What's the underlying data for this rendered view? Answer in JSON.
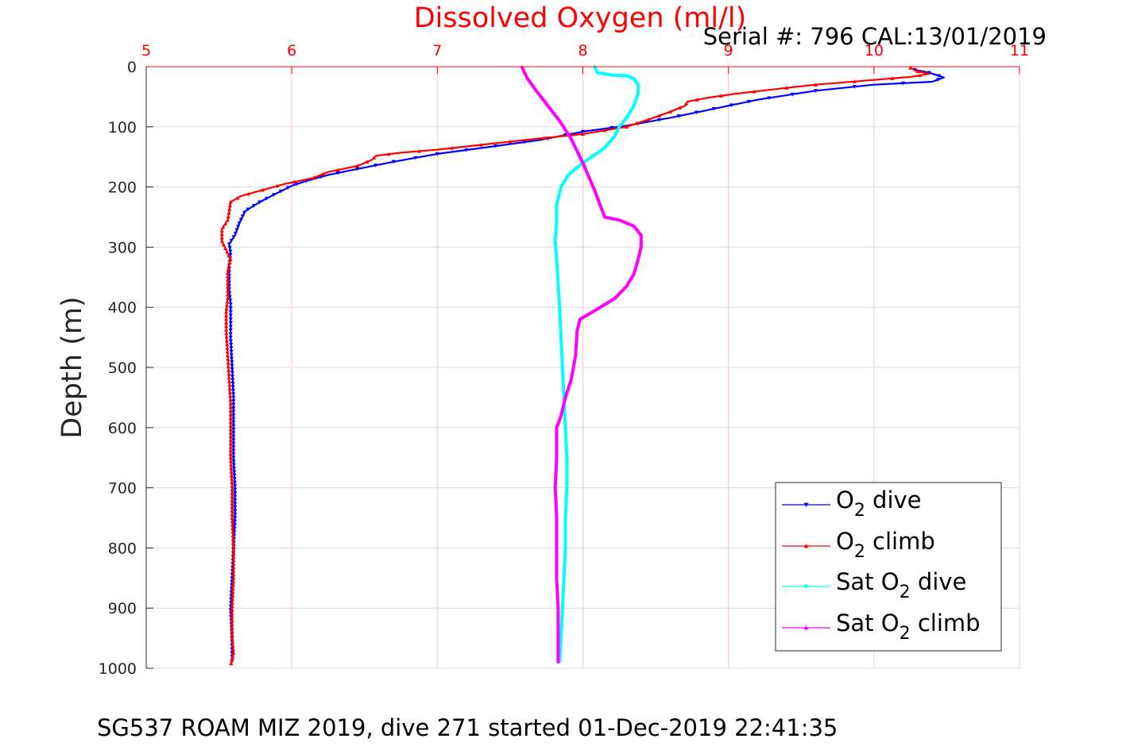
{
  "chart_data": {
    "type": "scatter",
    "title": "Dissolved Oxygen (ml/l)",
    "serial_text": "Serial #: 796  CAL:13/01/2019",
    "xlabel": "",
    "ylabel": "Depth (m)",
    "footer": "SG537 ROAM MIZ 2019, dive 271 started 01-Dec-2019 22:41:35",
    "xlim": [
      5,
      11
    ],
    "ylim": [
      0,
      1000
    ],
    "y_reversed": true,
    "x_axis_position": "top",
    "xticks": [
      "5",
      "6",
      "7",
      "8",
      "9",
      "10",
      "11"
    ],
    "yticks": [
      "0",
      "100",
      "200",
      "300",
      "400",
      "500",
      "600",
      "700",
      "800",
      "900",
      "1000"
    ],
    "grid": true,
    "legend_position": "bottom-right",
    "legend": [
      {
        "base": "O",
        "sub": "2",
        "suffix": " dive",
        "prefix": ""
      },
      {
        "base": "O",
        "sub": "2",
        "suffix": " climb",
        "prefix": ""
      },
      {
        "base": "O",
        "sub": "2",
        "suffix": " dive",
        "prefix": "Sat "
      },
      {
        "base": "O",
        "sub": "2",
        "suffix": " climb",
        "prefix": "Sat "
      }
    ],
    "series": [
      {
        "name": "O2 dive",
        "color": "#0000ff",
        "marker": "triangle-down",
        "points": [
          [
            10.28,
            5
          ],
          [
            10.38,
            10
          ],
          [
            10.48,
            18
          ],
          [
            10.4,
            25
          ],
          [
            10.0,
            30
          ],
          [
            9.6,
            40
          ],
          [
            9.2,
            55
          ],
          [
            8.9,
            70
          ],
          [
            8.6,
            85
          ],
          [
            8.3,
            98
          ],
          [
            8.0,
            108
          ],
          [
            7.7,
            122
          ],
          [
            7.4,
            132
          ],
          [
            7.0,
            145
          ],
          [
            6.7,
            158
          ],
          [
            6.45,
            170
          ],
          [
            6.25,
            180
          ],
          [
            6.1,
            190
          ],
          [
            6.0,
            198
          ],
          [
            5.9,
            210
          ],
          [
            5.78,
            225
          ],
          [
            5.68,
            240
          ],
          [
            5.64,
            260
          ],
          [
            5.61,
            280
          ],
          [
            5.57,
            295
          ],
          [
            5.58,
            310
          ],
          [
            5.57,
            330
          ],
          [
            5.57,
            350
          ],
          [
            5.57,
            370
          ],
          [
            5.58,
            395
          ],
          [
            5.58,
            420
          ],
          [
            5.58,
            450
          ],
          [
            5.59,
            500
          ],
          [
            5.6,
            550
          ],
          [
            5.6,
            600
          ],
          [
            5.6,
            650
          ],
          [
            5.61,
            700
          ],
          [
            5.61,
            750
          ],
          [
            5.6,
            800
          ],
          [
            5.59,
            850
          ],
          [
            5.58,
            900
          ],
          [
            5.59,
            950
          ],
          [
            5.59,
            990
          ]
        ]
      },
      {
        "name": "O2 climb",
        "color": "#ff0000",
        "marker": "triangle-up",
        "points": [
          [
            10.25,
            2
          ],
          [
            10.3,
            8
          ],
          [
            10.38,
            12
          ],
          [
            10.25,
            17
          ],
          [
            10.0,
            22
          ],
          [
            9.6,
            30
          ],
          [
            9.3,
            38
          ],
          [
            9.05,
            45
          ],
          [
            8.85,
            52
          ],
          [
            8.72,
            58
          ],
          [
            8.7,
            65
          ],
          [
            8.6,
            75
          ],
          [
            8.45,
            88
          ],
          [
            8.3,
            100
          ],
          [
            8.0,
            112
          ],
          [
            7.6,
            122
          ],
          [
            7.3,
            130
          ],
          [
            7.0,
            138
          ],
          [
            6.75,
            143
          ],
          [
            6.58,
            148
          ],
          [
            6.55,
            155
          ],
          [
            6.45,
            165
          ],
          [
            6.25,
            175
          ],
          [
            6.15,
            185
          ],
          [
            5.95,
            195
          ],
          [
            5.8,
            205
          ],
          [
            5.65,
            215
          ],
          [
            5.58,
            225
          ],
          [
            5.57,
            240
          ],
          [
            5.56,
            255
          ],
          [
            5.52,
            270
          ],
          [
            5.52,
            290
          ],
          [
            5.55,
            305
          ],
          [
            5.58,
            320
          ],
          [
            5.56,
            340
          ],
          [
            5.56,
            360
          ],
          [
            5.56,
            385
          ],
          [
            5.55,
            405
          ],
          [
            5.55,
            440
          ],
          [
            5.56,
            480
          ],
          [
            5.57,
            520
          ],
          [
            5.58,
            560
          ],
          [
            5.58,
            600
          ],
          [
            5.58,
            650
          ],
          [
            5.59,
            700
          ],
          [
            5.59,
            750
          ],
          [
            5.6,
            800
          ],
          [
            5.6,
            850
          ],
          [
            5.59,
            900
          ],
          [
            5.59,
            950
          ],
          [
            5.6,
            975
          ],
          [
            5.58,
            995
          ]
        ]
      },
      {
        "name": "Sat O2 dive",
        "color": "#00ffff",
        "marker": "triangle-down",
        "points": [
          [
            8.08,
            0
          ],
          [
            8.1,
            10
          ],
          [
            8.2,
            14
          ],
          [
            8.3,
            15
          ],
          [
            8.35,
            20
          ],
          [
            8.38,
            30
          ],
          [
            8.38,
            45
          ],
          [
            8.35,
            65
          ],
          [
            8.3,
            85
          ],
          [
            8.25,
            100
          ],
          [
            8.22,
            115
          ],
          [
            8.15,
            135
          ],
          [
            8.0,
            160
          ],
          [
            7.9,
            180
          ],
          [
            7.85,
            200
          ],
          [
            7.82,
            230
          ],
          [
            7.82,
            260
          ],
          [
            7.81,
            290
          ],
          [
            7.82,
            320
          ],
          [
            7.83,
            360
          ],
          [
            7.84,
            400
          ],
          [
            7.85,
            450
          ],
          [
            7.86,
            500
          ],
          [
            7.87,
            550
          ],
          [
            7.88,
            600
          ],
          [
            7.89,
            650
          ],
          [
            7.89,
            700
          ],
          [
            7.88,
            750
          ],
          [
            7.88,
            800
          ],
          [
            7.87,
            850
          ],
          [
            7.86,
            900
          ],
          [
            7.85,
            950
          ],
          [
            7.84,
            990
          ]
        ]
      },
      {
        "name": "Sat O2 climb",
        "color": "#ff00ff",
        "marker": "triangle-up",
        "points": [
          [
            7.58,
            0
          ],
          [
            7.62,
            20
          ],
          [
            7.68,
            40
          ],
          [
            7.76,
            65
          ],
          [
            7.84,
            90
          ],
          [
            7.92,
            120
          ],
          [
            8.0,
            160
          ],
          [
            8.08,
            205
          ],
          [
            8.15,
            250
          ],
          [
            8.25,
            255
          ],
          [
            8.35,
            265
          ],
          [
            8.4,
            280
          ],
          [
            8.4,
            300
          ],
          [
            8.38,
            320
          ],
          [
            8.35,
            345
          ],
          [
            8.3,
            365
          ],
          [
            8.22,
            385
          ],
          [
            8.12,
            400
          ],
          [
            7.98,
            420
          ],
          [
            7.96,
            440
          ],
          [
            7.95,
            480
          ],
          [
            7.92,
            520
          ],
          [
            7.88,
            550
          ],
          [
            7.85,
            580
          ],
          [
            7.82,
            600
          ],
          [
            7.82,
            650
          ],
          [
            7.81,
            700
          ],
          [
            7.82,
            750
          ],
          [
            7.82,
            800
          ],
          [
            7.82,
            850
          ],
          [
            7.83,
            900
          ],
          [
            7.83,
            950
          ],
          [
            7.83,
            990
          ]
        ]
      }
    ]
  }
}
